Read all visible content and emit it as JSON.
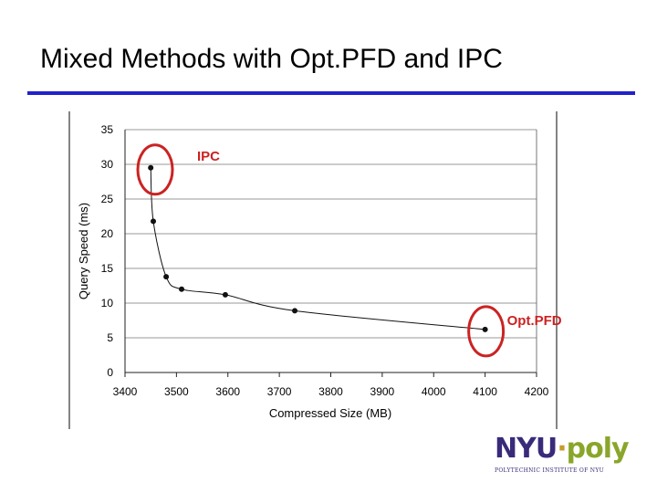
{
  "slide": {
    "title": "Mixed Methods with Opt.PFD and IPC"
  },
  "chart_data": {
    "type": "line",
    "title": "",
    "xlabel": "Compressed Size (MB)",
    "ylabel": "Query Speed (ms)",
    "xlim": [
      3400,
      4200
    ],
    "ylim": [
      0,
      35
    ],
    "x_ticks": [
      3400,
      3500,
      3600,
      3700,
      3800,
      3900,
      4000,
      4100,
      4200
    ],
    "y_ticks": [
      0,
      5,
      10,
      15,
      20,
      25,
      30,
      35
    ],
    "grid": "horizontal",
    "series": [
      {
        "x": [
          3450,
          3455,
          3480,
          3510,
          3595,
          3730,
          4100
        ],
        "y": [
          29.5,
          21.8,
          13.8,
          12.0,
          11.2,
          8.9,
          6.2
        ]
      }
    ],
    "annotations": [
      {
        "text": "IPC",
        "x": 3455,
        "y": 29.5,
        "color": "#cc2222"
      },
      {
        "text": "Opt.PFD",
        "x": 4100,
        "y": 6.2,
        "color": "#cc2222"
      }
    ]
  },
  "logo": {
    "nyu": "NYU",
    "dot": "·",
    "poly": "poly",
    "subtitle": "POLYTECHNIC INSTITUTE OF NYU"
  }
}
